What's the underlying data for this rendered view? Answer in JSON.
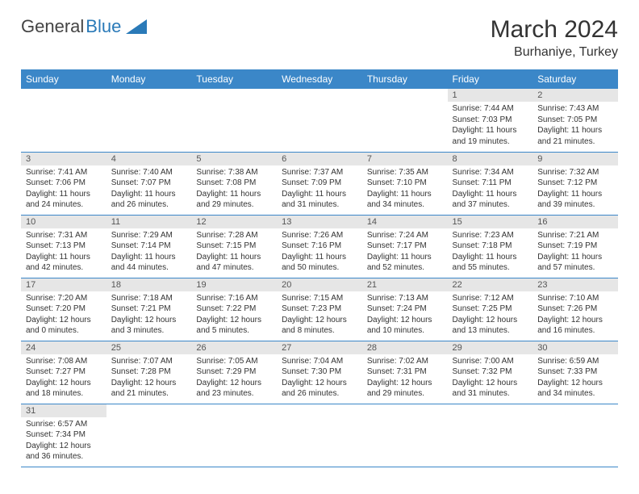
{
  "logo": {
    "part1": "General",
    "part2": "Blue"
  },
  "title": "March 2024",
  "location": "Burhaniye, Turkey",
  "columns": [
    "Sunday",
    "Monday",
    "Tuesday",
    "Wednesday",
    "Thursday",
    "Friday",
    "Saturday"
  ],
  "colors": {
    "header_bg": "#3b87c8",
    "header_text": "#ffffff",
    "daynum_bg": "#e6e6e6",
    "cell_border": "#3b87c8",
    "logo_blue": "#2a7ab8"
  },
  "days": [
    {
      "n": 1,
      "sunrise": "7:44 AM",
      "sunset": "7:03 PM",
      "daylight": "11 hours and 19 minutes."
    },
    {
      "n": 2,
      "sunrise": "7:43 AM",
      "sunset": "7:05 PM",
      "daylight": "11 hours and 21 minutes."
    },
    {
      "n": 3,
      "sunrise": "7:41 AM",
      "sunset": "7:06 PM",
      "daylight": "11 hours and 24 minutes."
    },
    {
      "n": 4,
      "sunrise": "7:40 AM",
      "sunset": "7:07 PM",
      "daylight": "11 hours and 26 minutes."
    },
    {
      "n": 5,
      "sunrise": "7:38 AM",
      "sunset": "7:08 PM",
      "daylight": "11 hours and 29 minutes."
    },
    {
      "n": 6,
      "sunrise": "7:37 AM",
      "sunset": "7:09 PM",
      "daylight": "11 hours and 31 minutes."
    },
    {
      "n": 7,
      "sunrise": "7:35 AM",
      "sunset": "7:10 PM",
      "daylight": "11 hours and 34 minutes."
    },
    {
      "n": 8,
      "sunrise": "7:34 AM",
      "sunset": "7:11 PM",
      "daylight": "11 hours and 37 minutes."
    },
    {
      "n": 9,
      "sunrise": "7:32 AM",
      "sunset": "7:12 PM",
      "daylight": "11 hours and 39 minutes."
    },
    {
      "n": 10,
      "sunrise": "7:31 AM",
      "sunset": "7:13 PM",
      "daylight": "11 hours and 42 minutes."
    },
    {
      "n": 11,
      "sunrise": "7:29 AM",
      "sunset": "7:14 PM",
      "daylight": "11 hours and 44 minutes."
    },
    {
      "n": 12,
      "sunrise": "7:28 AM",
      "sunset": "7:15 PM",
      "daylight": "11 hours and 47 minutes."
    },
    {
      "n": 13,
      "sunrise": "7:26 AM",
      "sunset": "7:16 PM",
      "daylight": "11 hours and 50 minutes."
    },
    {
      "n": 14,
      "sunrise": "7:24 AM",
      "sunset": "7:17 PM",
      "daylight": "11 hours and 52 minutes."
    },
    {
      "n": 15,
      "sunrise": "7:23 AM",
      "sunset": "7:18 PM",
      "daylight": "11 hours and 55 minutes."
    },
    {
      "n": 16,
      "sunrise": "7:21 AM",
      "sunset": "7:19 PM",
      "daylight": "11 hours and 57 minutes."
    },
    {
      "n": 17,
      "sunrise": "7:20 AM",
      "sunset": "7:20 PM",
      "daylight": "12 hours and 0 minutes."
    },
    {
      "n": 18,
      "sunrise": "7:18 AM",
      "sunset": "7:21 PM",
      "daylight": "12 hours and 3 minutes."
    },
    {
      "n": 19,
      "sunrise": "7:16 AM",
      "sunset": "7:22 PM",
      "daylight": "12 hours and 5 minutes."
    },
    {
      "n": 20,
      "sunrise": "7:15 AM",
      "sunset": "7:23 PM",
      "daylight": "12 hours and 8 minutes."
    },
    {
      "n": 21,
      "sunrise": "7:13 AM",
      "sunset": "7:24 PM",
      "daylight": "12 hours and 10 minutes."
    },
    {
      "n": 22,
      "sunrise": "7:12 AM",
      "sunset": "7:25 PM",
      "daylight": "12 hours and 13 minutes."
    },
    {
      "n": 23,
      "sunrise": "7:10 AM",
      "sunset": "7:26 PM",
      "daylight": "12 hours and 16 minutes."
    },
    {
      "n": 24,
      "sunrise": "7:08 AM",
      "sunset": "7:27 PM",
      "daylight": "12 hours and 18 minutes."
    },
    {
      "n": 25,
      "sunrise": "7:07 AM",
      "sunset": "7:28 PM",
      "daylight": "12 hours and 21 minutes."
    },
    {
      "n": 26,
      "sunrise": "7:05 AM",
      "sunset": "7:29 PM",
      "daylight": "12 hours and 23 minutes."
    },
    {
      "n": 27,
      "sunrise": "7:04 AM",
      "sunset": "7:30 PM",
      "daylight": "12 hours and 26 minutes."
    },
    {
      "n": 28,
      "sunrise": "7:02 AM",
      "sunset": "7:31 PM",
      "daylight": "12 hours and 29 minutes."
    },
    {
      "n": 29,
      "sunrise": "7:00 AM",
      "sunset": "7:32 PM",
      "daylight": "12 hours and 31 minutes."
    },
    {
      "n": 30,
      "sunrise": "6:59 AM",
      "sunset": "7:33 PM",
      "daylight": "12 hours and 34 minutes."
    },
    {
      "n": 31,
      "sunrise": "6:57 AM",
      "sunset": "7:34 PM",
      "daylight": "12 hours and 36 minutes."
    }
  ],
  "labels": {
    "sunrise": "Sunrise:",
    "sunset": "Sunset:",
    "daylight": "Daylight:"
  },
  "first_day_column": 5
}
